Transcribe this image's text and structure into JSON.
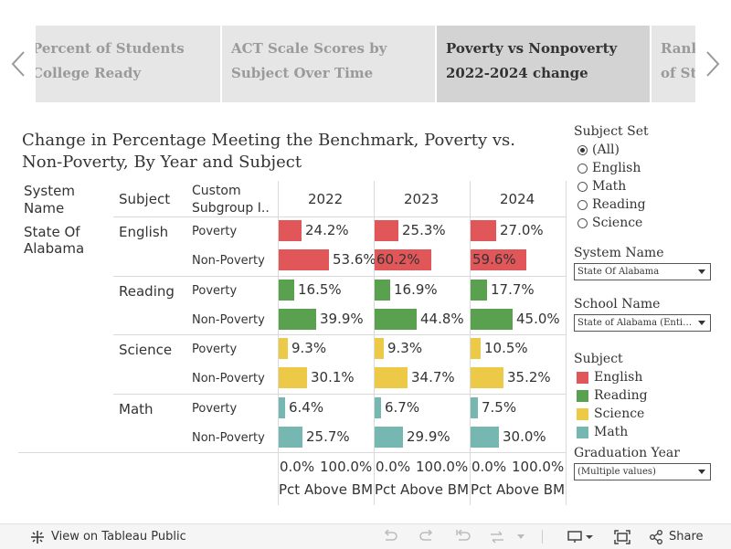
{
  "story_tabs": [
    {
      "label": "Percent of Students College Ready",
      "active": false
    },
    {
      "label": "ACT Scale Scores by Subject Over Time",
      "active": false
    },
    {
      "label": "Poverty vs Nonpoverty 2022-2024 change",
      "active": true
    },
    {
      "label": "Rankings of States",
      "active": false
    }
  ],
  "title": "Change in Percentage Meeting the Benchmark, Poverty vs. Non-Poverty, By Year and Subject",
  "table": {
    "headers": {
      "system_name": "System Name",
      "subject": "Subject",
      "custom_subgroup": "Custom Subgroup I..",
      "years": [
        "2022",
        "2023",
        "2024"
      ]
    },
    "system": "State Of Alabama",
    "subjects": [
      "English",
      "Reading",
      "Science",
      "Math"
    ],
    "subgroups": [
      "Poverty",
      "Non-Poverty"
    ],
    "axis_ticks": [
      "0.0%",
      "100.0%"
    ],
    "axis_title": "Pct Above BM"
  },
  "chart_data": {
    "type": "bar",
    "orientation": "horizontal",
    "unit": "%",
    "xlim": [
      0,
      100
    ],
    "rows": [
      {
        "subject": "English",
        "subgroup": "Poverty",
        "color": "#e15759",
        "values": [
          24.2,
          25.3,
          27.0
        ],
        "labels": [
          "24.2%",
          "25.3%",
          "27.0%"
        ]
      },
      {
        "subject": "English",
        "subgroup": "Non-Poverty",
        "color": "#e15759",
        "values": [
          53.6,
          60.2,
          59.6
        ],
        "labels": [
          "53.6%",
          "60.2%",
          "59.6%"
        ]
      },
      {
        "subject": "Reading",
        "subgroup": "Poverty",
        "color": "#59a14f",
        "values": [
          16.5,
          16.9,
          17.7
        ],
        "labels": [
          "16.5%",
          "16.9%",
          "17.7%"
        ]
      },
      {
        "subject": "Reading",
        "subgroup": "Non-Poverty",
        "color": "#59a14f",
        "values": [
          39.9,
          44.8,
          45.0
        ],
        "labels": [
          "39.9%",
          "44.8%",
          "45.0%"
        ]
      },
      {
        "subject": "Science",
        "subgroup": "Poverty",
        "color": "#edc948",
        "values": [
          9.3,
          9.3,
          10.5
        ],
        "labels": [
          "9.3%",
          "9.3%",
          "10.5%"
        ]
      },
      {
        "subject": "Science",
        "subgroup": "Non-Poverty",
        "color": "#edc948",
        "values": [
          30.1,
          34.7,
          35.2
        ],
        "labels": [
          "30.1%",
          "34.7%",
          "35.2%"
        ]
      },
      {
        "subject": "Math",
        "subgroup": "Poverty",
        "color": "#76b7b2",
        "values": [
          6.4,
          6.7,
          7.5
        ],
        "labels": [
          "6.4%",
          "6.7%",
          "7.5%"
        ]
      },
      {
        "subject": "Math",
        "subgroup": "Non-Poverty",
        "color": "#76b7b2",
        "values": [
          25.7,
          29.9,
          30.0
        ],
        "labels": [
          "25.7%",
          "29.9%",
          "30.0%"
        ]
      }
    ],
    "columns": [
      "2022",
      "2023",
      "2024"
    ]
  },
  "filters": {
    "subject_set": {
      "title": "Subject Set",
      "options": [
        "(All)",
        "English",
        "Math",
        "Reading",
        "Science"
      ],
      "selected": "(All)"
    },
    "system_name": {
      "title": "System Name",
      "value": "State Of Alabama"
    },
    "school_name": {
      "title": "School Name",
      "value": "State of Alabama (Entire..."
    },
    "subject_legend": {
      "title": "Subject",
      "items": [
        {
          "label": "English",
          "color": "#e15759"
        },
        {
          "label": "Reading",
          "color": "#59a14f"
        },
        {
          "label": "Science",
          "color": "#edc948"
        },
        {
          "label": "Math",
          "color": "#76b7b2"
        }
      ]
    },
    "graduation_year": {
      "title": "Graduation Year",
      "value": "(Multiple values)"
    }
  },
  "toolbar": {
    "view_label": "View on Tableau Public",
    "share_label": "Share"
  }
}
